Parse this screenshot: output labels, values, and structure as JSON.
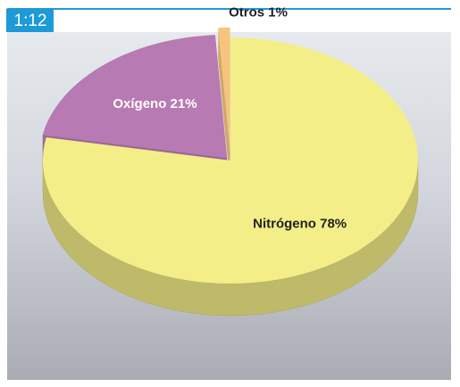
{
  "figure_label": "1:12",
  "chart_data": {
    "type": "pie",
    "values": [
      78,
      21,
      1
    ],
    "value_labels": [
      "Nitrógeno 78%",
      "Oxígeno 21%",
      "Otros 1%"
    ],
    "colors": [
      "#f4ee88",
      "#b87ab2",
      "#f6c47c"
    ]
  }
}
